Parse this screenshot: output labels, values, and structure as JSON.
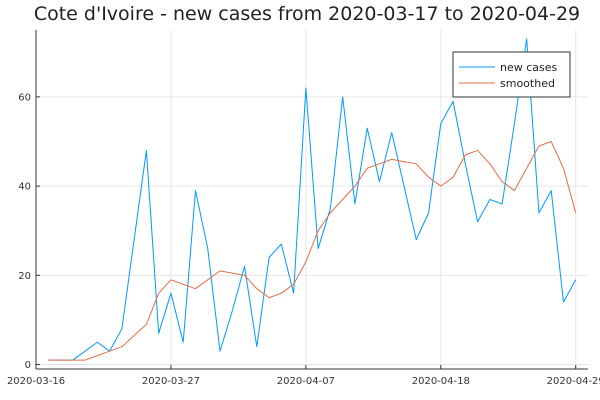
{
  "chart_data": {
    "type": "line",
    "title": "Cote d'Ivoire - new cases from 2020-03-17 to 2020-04-29",
    "xlabel": "",
    "ylabel": "",
    "x": [
      "2020-03-17",
      "2020-03-18",
      "2020-03-19",
      "2020-03-20",
      "2020-03-21",
      "2020-03-22",
      "2020-03-23",
      "2020-03-24",
      "2020-03-25",
      "2020-03-26",
      "2020-03-27",
      "2020-03-28",
      "2020-03-29",
      "2020-03-30",
      "2020-03-31",
      "2020-04-01",
      "2020-04-02",
      "2020-04-03",
      "2020-04-04",
      "2020-04-05",
      "2020-04-06",
      "2020-04-07",
      "2020-04-08",
      "2020-04-09",
      "2020-04-10",
      "2020-04-11",
      "2020-04-12",
      "2020-04-13",
      "2020-04-14",
      "2020-04-15",
      "2020-04-16",
      "2020-04-17",
      "2020-04-18",
      "2020-04-19",
      "2020-04-20",
      "2020-04-21",
      "2020-04-22",
      "2020-04-23",
      "2020-04-24",
      "2020-04-25",
      "2020-04-26",
      "2020-04-27",
      "2020-04-28",
      "2020-04-29"
    ],
    "x_ticks": [
      "2020-03-16",
      "2020-03-27",
      "2020-04-07",
      "2020-04-18",
      "2020-04-29"
    ],
    "y_ticks": [
      0,
      20,
      40,
      60
    ],
    "ylim": [
      -1,
      75
    ],
    "xlim": [
      "2020-03-16",
      "2020-04-30"
    ],
    "grid": true,
    "legend_position": "top-right",
    "series": [
      {
        "name": "new cases",
        "color": "#009AFA",
        "values": [
          1,
          1,
          1,
          3,
          5,
          3,
          8,
          28,
          48,
          7,
          16,
          5,
          39,
          26,
          3,
          12,
          22,
          4,
          24,
          27,
          16,
          62,
          26,
          35,
          60,
          36,
          53,
          41,
          52,
          40,
          28,
          34,
          54,
          59,
          45,
          32,
          37,
          36,
          54,
          73,
          34,
          39,
          14,
          19
        ]
      },
      {
        "name": "smoothed",
        "color": "#E26F46",
        "values": [
          1,
          1,
          1,
          1,
          2,
          3,
          4,
          6.5,
          9,
          16,
          19,
          18,
          17,
          19,
          21,
          20.5,
          20,
          17,
          15,
          16,
          18,
          23,
          30,
          34,
          37,
          40,
          44,
          45,
          46,
          45.5,
          45,
          42,
          40,
          42,
          47,
          48,
          45,
          41,
          39,
          44,
          49,
          50,
          44,
          34
        ]
      }
    ]
  }
}
